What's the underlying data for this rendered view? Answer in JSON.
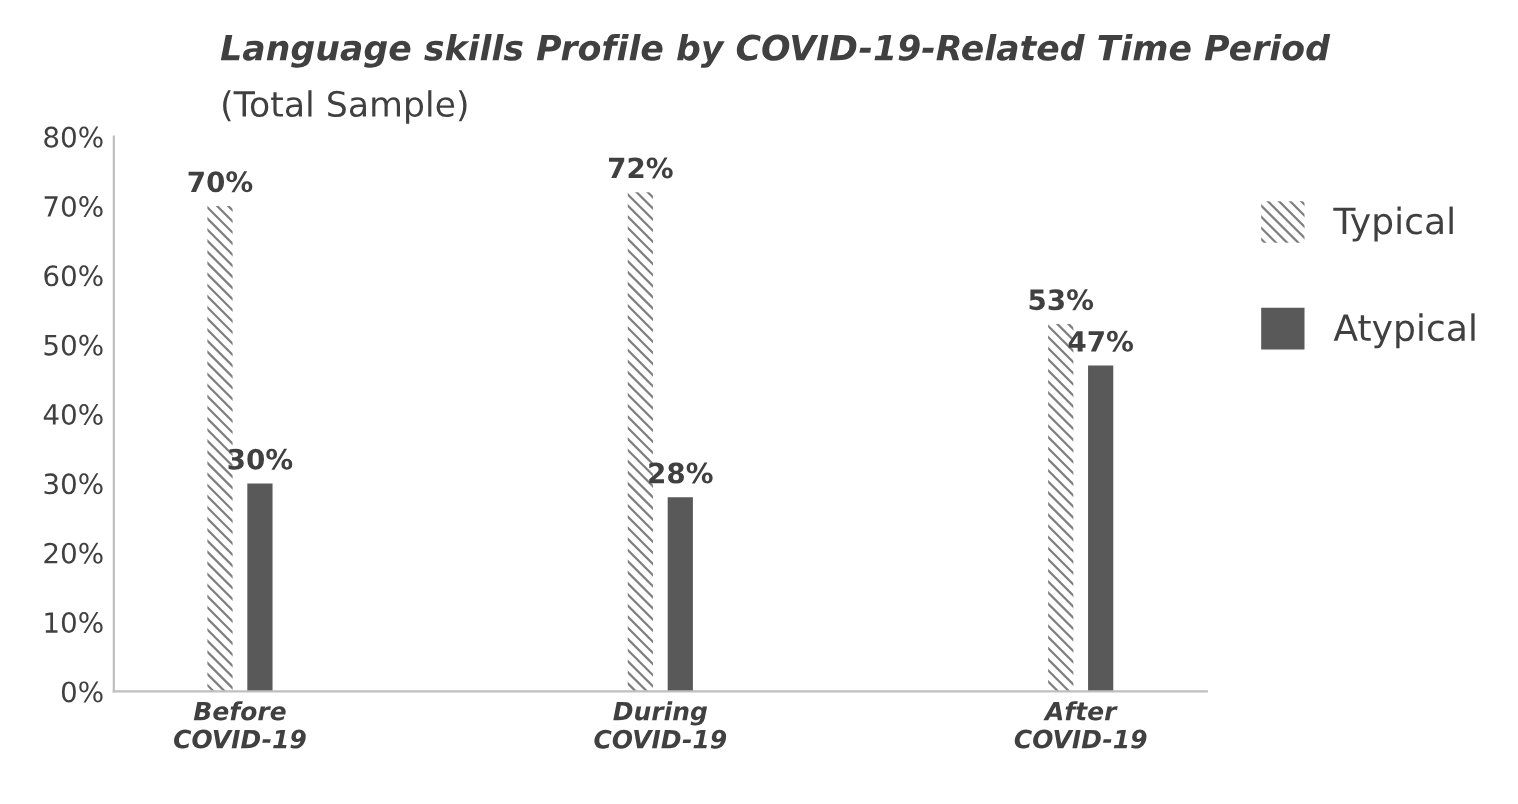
{
  "chart_data": {
    "type": "bar",
    "title": "Language skills Profile by COVID-19-Related Time Period",
    "subtitle": "(Total Sample)",
    "categories": [
      "Before\nCOVID-19",
      "During\nCOVID-19",
      "After\nCOVID-19"
    ],
    "series": [
      {
        "name": "Typical",
        "color": "#7f7f7f",
        "values": [
          70,
          72,
          53
        ],
        "value_labels": [
          "70%",
          "72%",
          "53%"
        ]
      },
      {
        "name": "Atypical",
        "color": "#595959",
        "values": [
          30,
          28,
          47
        ],
        "value_labels": [
          "30%",
          "28%",
          "47%"
        ]
      }
    ],
    "ylim": [
      0,
      80
    ],
    "yticks": [
      {
        "value": 0,
        "label": "0%"
      },
      {
        "value": 10,
        "label": "10%"
      },
      {
        "value": 20,
        "label": "20%"
      },
      {
        "value": 30,
        "label": "30%"
      },
      {
        "value": 40,
        "label": "40%"
      },
      {
        "value": 50,
        "label": "50%"
      },
      {
        "value": 60,
        "label": "60%"
      },
      {
        "value": 70,
        "label": "70%"
      },
      {
        "value": 80,
        "label": "80%"
      }
    ],
    "grid": false,
    "legend": "right"
  }
}
